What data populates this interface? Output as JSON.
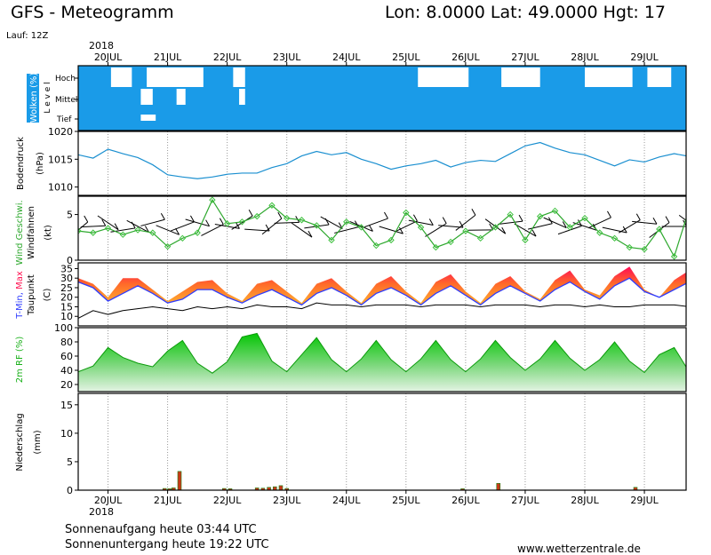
{
  "header": {
    "title": "GFS - Meteogramm",
    "location": "Lon: 8.0000 Lat: 49.0000 Hgt: 17",
    "run": "Lauf: 12Z",
    "year": "2018"
  },
  "footer": {
    "sunrise": "Sonnenaufgang heute 03:44 UTC",
    "sunset": "Sonnenuntergang heute 19:22 UTC",
    "site": "www.wetterzentrale.de"
  },
  "chart_data": [
    {
      "type": "area",
      "panel": "clouds",
      "ylabel": "Wolken (%)",
      "ylabel2": "L e v e l",
      "levels": [
        "Hoch",
        "Mittel",
        "Tief"
      ],
      "clear_patches": [
        {
          "level": "Hoch",
          "from": 20.05,
          "to": 20.4
        },
        {
          "level": "Hoch",
          "from": 20.65,
          "to": 21.6
        },
        {
          "level": "Hoch",
          "from": 22.1,
          "to": 22.3
        },
        {
          "level": "Hoch",
          "from": 25.2,
          "to": 26.05
        },
        {
          "level": "Hoch",
          "from": 26.6,
          "to": 27.25
        },
        {
          "level": "Hoch",
          "from": 28.0,
          "to": 28.8
        },
        {
          "level": "Hoch",
          "from": 29.05,
          "to": 29.45
        },
        {
          "level": "Mittel",
          "from": 20.55,
          "to": 20.75
        },
        {
          "level": "Mittel",
          "from": 21.15,
          "to": 21.3
        },
        {
          "level": "Mittel",
          "from": 22.2,
          "to": 22.3
        },
        {
          "level": "Tief",
          "from": 20.55,
          "to": 20.8
        }
      ]
    },
    {
      "type": "line",
      "panel": "pressure",
      "ylabel": "Bodendruck",
      "unit": "(hPa)",
      "ylim": [
        1008.5,
        1020
      ],
      "yticks": [
        1010,
        1015,
        1020
      ],
      "x": [
        19.5,
        19.75,
        20,
        20.25,
        20.5,
        20.75,
        21,
        21.25,
        21.5,
        21.75,
        22,
        22.25,
        22.5,
        22.75,
        23,
        23.25,
        23.5,
        23.75,
        24,
        24.25,
        24.5,
        24.75,
        25,
        25.25,
        25.5,
        25.75,
        26,
        26.25,
        26.5,
        26.75,
        27,
        27.25,
        27.5,
        27.75,
        28,
        28.25,
        28.5,
        28.75,
        29,
        29.25,
        29.5,
        29.75
      ],
      "values": [
        1015.8,
        1015.2,
        1016.8,
        1016,
        1015.3,
        1014,
        1012.2,
        1011.8,
        1011.5,
        1011.8,
        1012.3,
        1012.5,
        1012.5,
        1013.5,
        1014.2,
        1015.6,
        1016.4,
        1015.8,
        1016.2,
        1015,
        1014.2,
        1013.2,
        1013.8,
        1014.2,
        1014.8,
        1013.6,
        1014.4,
        1014.8,
        1014.6,
        1016,
        1017.4,
        1018,
        1017,
        1016.2,
        1015.8,
        1014.8,
        1013.8,
        1014.9,
        1014.5,
        1015.4,
        1016,
        1015.5
      ]
    },
    {
      "type": "line",
      "panel": "wind",
      "ylabel": "Wind Geschwi.",
      "ylabel2": "Windfahnen",
      "unit": "(kt)",
      "ylim": [
        0,
        7
      ],
      "yticks": [
        0,
        5
      ],
      "x": [
        19.5,
        19.75,
        20,
        20.25,
        20.5,
        20.75,
        21,
        21.25,
        21.5,
        21.75,
        22,
        22.25,
        22.5,
        22.75,
        23,
        23.25,
        23.5,
        23.75,
        24,
        24.25,
        24.5,
        24.75,
        25,
        25.25,
        25.5,
        25.75,
        26,
        26.25,
        26.5,
        26.75,
        27,
        27.25,
        27.5,
        27.75,
        28,
        28.25,
        28.5,
        28.75,
        29,
        29.25,
        29.5,
        29.75
      ],
      "values": [
        3.2,
        3.0,
        3.5,
        2.8,
        3.3,
        3.0,
        1.5,
        2.4,
        3.0,
        6.6,
        4.0,
        4.2,
        4.8,
        6.0,
        4.6,
        4.4,
        3.8,
        2.2,
        4.2,
        3.6,
        1.6,
        2.2,
        5.2,
        3.6,
        1.4,
        2.0,
        3.2,
        2.4,
        3.6,
        5.0,
        2.2,
        4.8,
        5.4,
        3.6,
        4.6,
        3.0,
        2.4,
        1.4,
        1.2,
        3.4,
        0.4,
        5.6
      ]
    },
    {
      "type": "area",
      "panel": "temperature",
      "ylabel": "T-Min, Max",
      "ylabel2": "Taupunkt",
      "unit": "(C)",
      "ylim": [
        5,
        38
      ],
      "yticks": [
        10,
        15,
        20,
        25,
        30,
        35
      ],
      "x": [
        19.5,
        19.75,
        20,
        20.25,
        20.5,
        20.75,
        21,
        21.25,
        21.5,
        21.75,
        22,
        22.25,
        22.5,
        22.75,
        23,
        23.25,
        23.5,
        23.75,
        24,
        24.25,
        24.5,
        24.75,
        25,
        25.25,
        25.5,
        25.75,
        26,
        26.25,
        26.5,
        26.75,
        27,
        27.25,
        27.5,
        27.75,
        28,
        28.25,
        28.5,
        28.75,
        29,
        29.25,
        29.5,
        29.75
      ],
      "series": [
        {
          "name": "Max",
          "values": [
            30,
            27,
            20,
            30,
            30,
            24,
            18,
            23,
            28,
            29,
            22,
            18,
            27,
            29,
            23,
            17,
            27,
            30,
            23,
            17,
            27,
            31,
            23,
            17,
            28,
            32,
            23,
            17,
            27,
            31,
            23,
            19,
            29,
            34,
            24,
            21,
            31,
            36,
            24,
            20,
            29,
            34
          ]
        },
        {
          "name": "T-Min",
          "values": [
            28,
            25,
            18,
            22,
            26,
            22,
            17,
            19,
            24,
            24,
            20,
            17,
            21,
            24,
            20,
            16,
            22,
            25,
            21,
            16,
            22,
            25,
            21,
            16,
            22,
            26,
            21,
            16,
            22,
            26,
            22,
            18,
            24,
            28,
            23,
            19,
            26,
            30,
            23,
            20,
            24,
            28
          ]
        },
        {
          "name": "Taupunkt",
          "values": [
            9,
            13,
            11,
            13,
            14,
            15,
            14,
            13,
            15,
            14,
            15,
            14,
            16,
            15,
            15,
            14,
            17,
            16,
            16,
            15,
            16,
            16,
            16,
            15,
            16,
            16,
            16,
            15,
            16,
            16,
            16,
            15,
            16,
            16,
            15,
            16,
            15,
            15,
            16,
            16,
            16,
            15
          ]
        }
      ]
    },
    {
      "type": "area",
      "panel": "humidity",
      "ylabel": "2m RF (%)",
      "ylim": [
        10,
        100
      ],
      "yticks": [
        20,
        40,
        60,
        80,
        100
      ],
      "x": [
        19.5,
        19.75,
        20,
        20.25,
        20.5,
        20.75,
        21,
        21.25,
        21.5,
        21.75,
        22,
        22.25,
        22.5,
        22.75,
        23,
        23.25,
        23.5,
        23.75,
        24,
        24.25,
        24.5,
        24.75,
        25,
        25.25,
        25.5,
        25.75,
        26,
        26.25,
        26.5,
        26.75,
        27,
        27.25,
        27.5,
        27.75,
        28,
        28.25,
        28.5,
        28.75,
        29,
        29.25,
        29.5,
        29.75
      ],
      "values": [
        38,
        46,
        72,
        58,
        50,
        45,
        67,
        82,
        50,
        36,
        52,
        87,
        92,
        53,
        38,
        62,
        86,
        55,
        38,
        56,
        82,
        55,
        38,
        56,
        82,
        55,
        38,
        56,
        82,
        58,
        40,
        56,
        82,
        57,
        40,
        55,
        80,
        53,
        37,
        62,
        72,
        38
      ]
    },
    {
      "type": "bar",
      "panel": "precipitation",
      "ylabel": "Niederschlag",
      "unit": "(mm)",
      "ylim": [
        0,
        17
      ],
      "yticks": [
        0,
        5,
        10,
        15
      ],
      "x": [
        20.95,
        21.03,
        21.1,
        21.2,
        21.95,
        22.05,
        22.5,
        22.6,
        22.7,
        22.8,
        22.9,
        23.0,
        25.95,
        26.55,
        28.85
      ],
      "values": [
        0.3,
        0.25,
        0.4,
        3.3,
        0.3,
        0.25,
        0.4,
        0.35,
        0.5,
        0.6,
        0.8,
        0.3,
        0.25,
        1.2,
        0.5
      ]
    }
  ],
  "xaxis": {
    "ticks": [
      20,
      21,
      22,
      23,
      24,
      25,
      26,
      27,
      28,
      29
    ],
    "labels": [
      "20JUL",
      "21JUL",
      "22JUL",
      "23JUL",
      "24JUL",
      "25JUL",
      "26JUL",
      "27JUL",
      "28JUL",
      "29JUL"
    ],
    "range": [
      19.5,
      29.7
    ]
  },
  "colors": {
    "clouds": "#1a9be8",
    "pressure": "#1a8fd0",
    "wind_line": "#2ea82e",
    "wind_marker": "#3ec13e",
    "temp_hot": "#ff1050",
    "temp_warm": "#ff9a22",
    "temp_min": "#2f3cff",
    "dewpoint": "#000000",
    "humidity": "#18c818",
    "precip_bar": "#c83818",
    "precip_edge": "#1a8a1a",
    "title_color": "#0b35c8"
  }
}
